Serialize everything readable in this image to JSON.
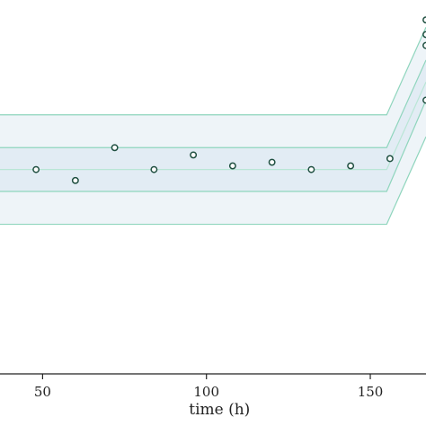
{
  "chart_data": {
    "type": "line",
    "xlabel": "time (h)",
    "x_ticks": [
      50,
      100,
      150
    ],
    "xlim": [
      37,
      167
    ],
    "ylim": [
      0,
      100
    ],
    "grid": false,
    "colors": {
      "band_stroke": "#8fd5bd",
      "outer_band_fill": "#eef4f8",
      "inner_band_fill": "#e2ecf4",
      "median_line": "#b9e6d6",
      "point_stroke": "#1f4f40"
    },
    "band_x": [
      37,
      155,
      167
    ],
    "outer_band": {
      "upper": [
        71,
        71,
        95
      ],
      "lower": [
        41,
        41,
        65
      ]
    },
    "inner_band": {
      "upper": [
        62,
        62,
        86
      ],
      "lower": [
        50,
        50,
        75
      ]
    },
    "median": {
      "x": [
        37,
        155,
        167
      ],
      "y": [
        56,
        56,
        80
      ]
    },
    "observations": {
      "x": [
        48,
        60,
        72,
        84,
        96,
        108,
        120,
        132,
        144,
        156,
        167,
        167,
        167,
        167
      ],
      "y": [
        56,
        53,
        62,
        56,
        60,
        57,
        58,
        56,
        57,
        59,
        90,
        93,
        97,
        75
      ]
    }
  }
}
